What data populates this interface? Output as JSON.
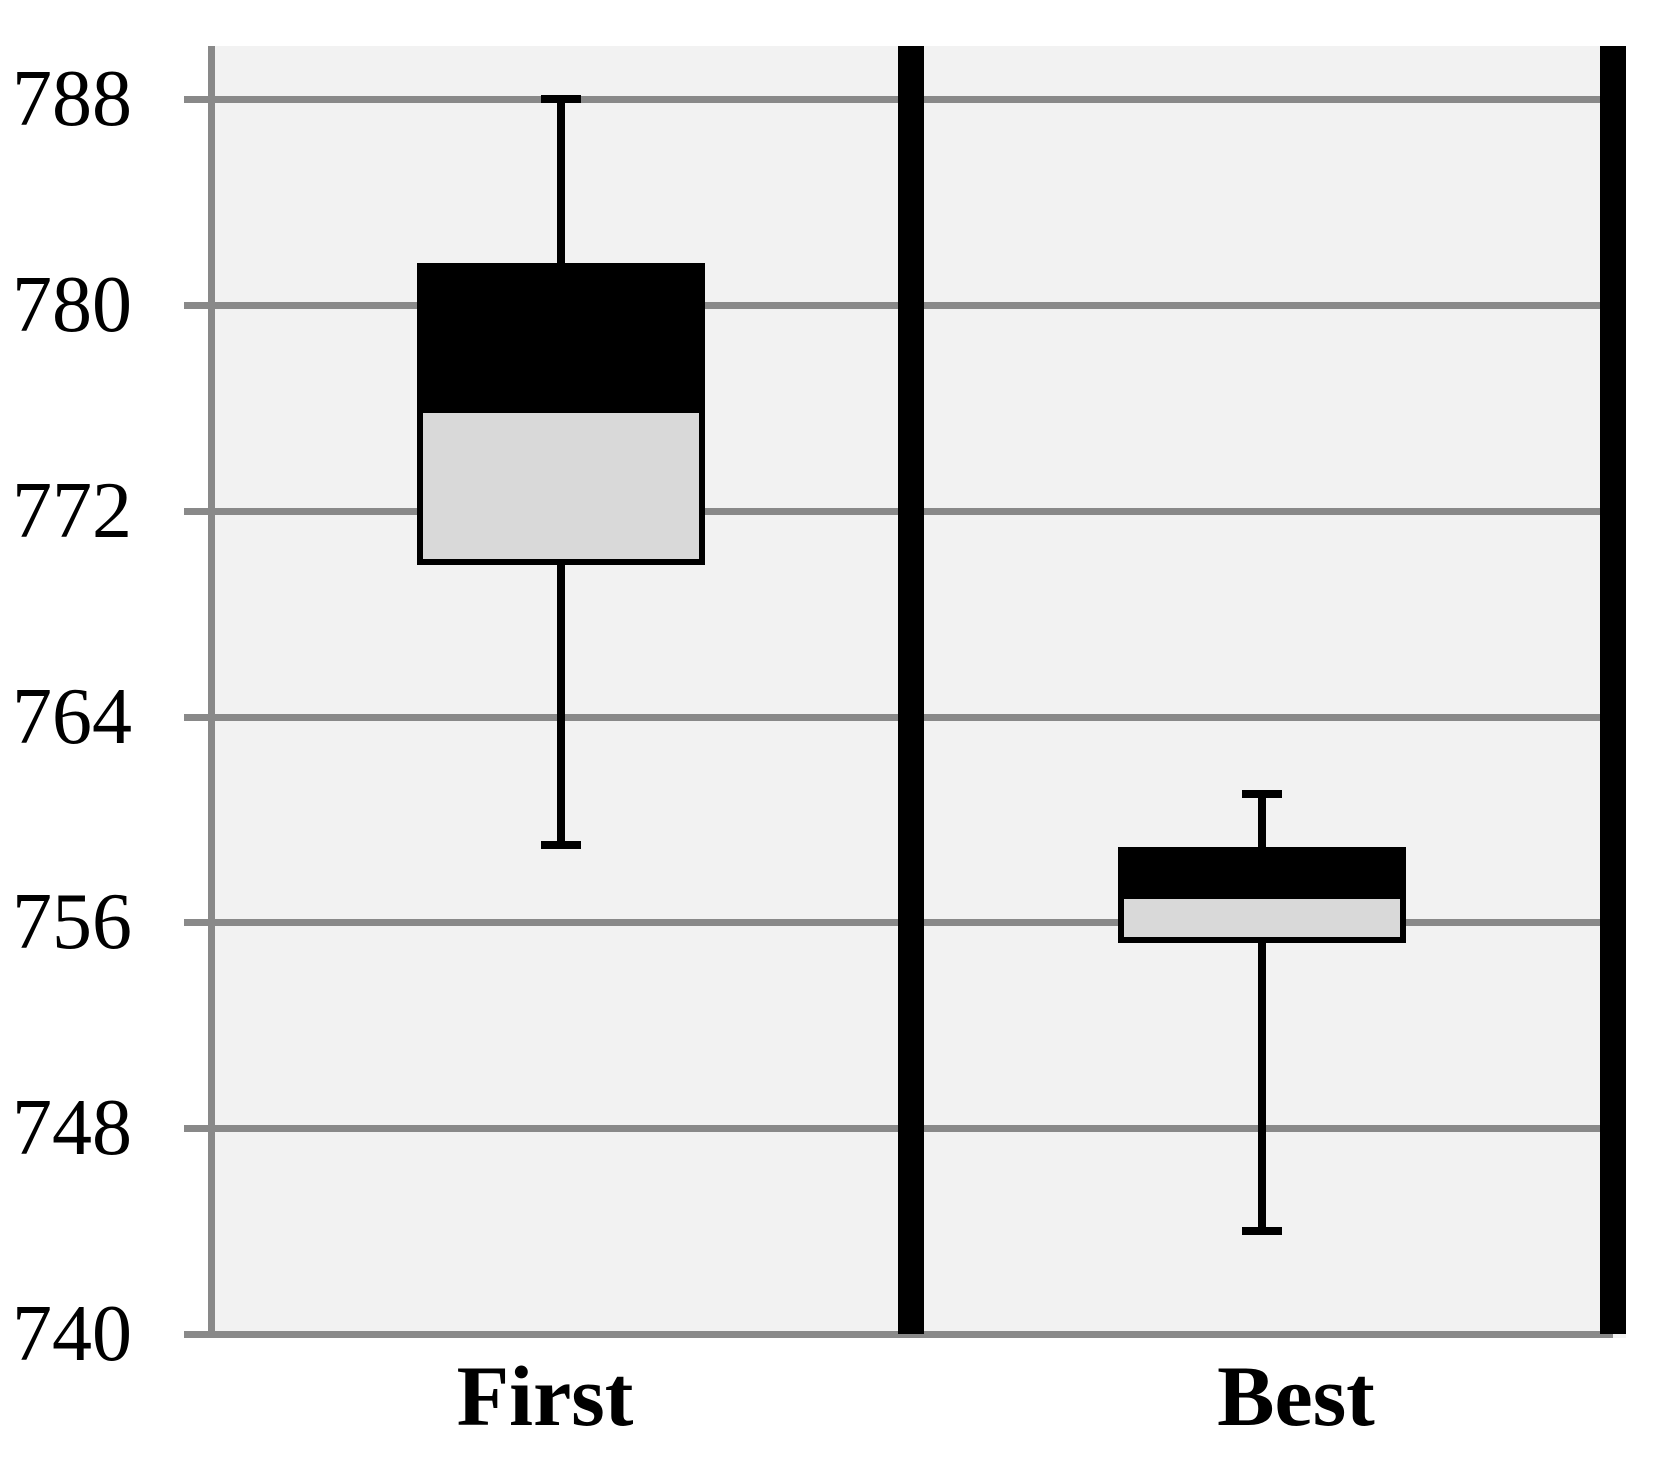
{
  "chart_data": {
    "type": "box",
    "title": "",
    "xlabel": "",
    "ylabel": "",
    "categories": [
      "First",
      "Best"
    ],
    "series": [
      {
        "name": "First",
        "whisker_high": 788,
        "q3": 781.5,
        "median": 775.8,
        "q1": 770,
        "whisker_low": 759
      },
      {
        "name": "Best",
        "whisker_high": 761,
        "q3": 758.8,
        "median": 756.9,
        "q1": 755.3,
        "whisker_low": 744
      }
    ],
    "y_ticks": [
      788,
      780,
      772,
      764,
      756,
      748,
      740
    ],
    "ylim": [
      740,
      790
    ],
    "grid": true,
    "legend": "none",
    "colors": {
      "upper_box_fill": "#000000",
      "lower_box_fill": "#d9d9d9",
      "box_border": "#000000",
      "whisker": "#000000",
      "gridline": "#898989",
      "axis_line": "#898989",
      "plot_background": "#f2f2f2",
      "page_background": "#ffffff",
      "divider_wall": "#000000",
      "label_text": "#000000"
    }
  }
}
